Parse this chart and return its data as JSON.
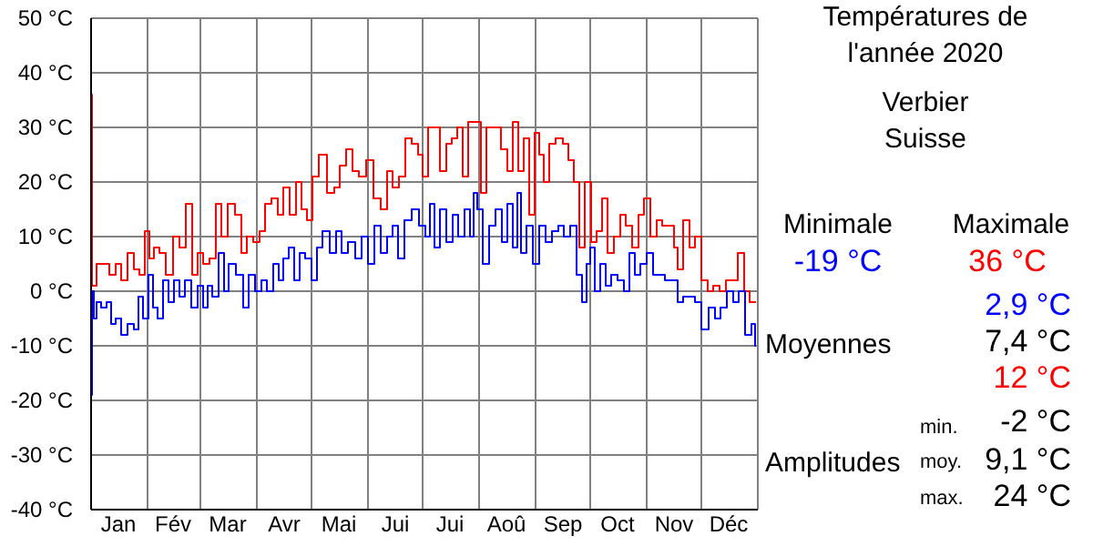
{
  "chart_data": {
    "type": "step",
    "title": "Températures de\nl'année 2020",
    "subtitle": "Verbier\nSuisse",
    "xlim": [
      "2020-01-01",
      "2021-01-01"
    ],
    "xticks": [
      {
        "value": "2020-01-01",
        "label": null
      },
      {
        "value": "2020-01-16",
        "label": "Jan"
      },
      {
        "value": "2020-02-01",
        "label": null
      },
      {
        "value": "2020-02-15",
        "label": "Fév"
      },
      {
        "value": "2020-03-01",
        "label": null
      },
      {
        "value": "2020-03-16",
        "label": "Mar"
      },
      {
        "value": "2020-04-01",
        "label": null
      },
      {
        "value": "2020-04-16",
        "label": "Avr"
      },
      {
        "value": "2020-05-01",
        "label": null
      },
      {
        "value": "2020-05-16",
        "label": "Mai"
      },
      {
        "value": "2020-06-01",
        "label": null
      },
      {
        "value": "2020-06-16",
        "label": "Jui"
      },
      {
        "value": "2020-07-01",
        "label": null
      },
      {
        "value": "2020-07-16",
        "label": "Jui"
      },
      {
        "value": "2020-08-01",
        "label": null
      },
      {
        "value": "2020-08-16",
        "label": "Aoû"
      },
      {
        "value": "2020-09-01",
        "label": null
      },
      {
        "value": "2020-09-16",
        "label": "Sep"
      },
      {
        "value": "2020-10-01",
        "label": null
      },
      {
        "value": "2020-10-16",
        "label": "Oct"
      },
      {
        "value": "2020-11-01",
        "label": null
      },
      {
        "value": "2020-11-16",
        "label": "Nov"
      },
      {
        "value": "2020-12-01",
        "label": null
      },
      {
        "value": "2020-12-16",
        "label": "Déc"
      },
      {
        "value": "2021-01-01",
        "label": null
      }
    ],
    "ylim": [
      -40,
      50
    ],
    "yticks": [
      {
        "value": -40,
        "label": "-40 °C"
      },
      {
        "value": -30,
        "label": "-30 °C"
      },
      {
        "value": -20,
        "label": "-20 °C"
      },
      {
        "value": -10,
        "label": "-10 °C"
      },
      {
        "value": 0,
        "label": "0 °C"
      },
      {
        "value": 10,
        "label": "10 °C"
      },
      {
        "value": 20,
        "label": "20 °C"
      },
      {
        "value": 30,
        "label": "30 °C"
      },
      {
        "value": 40,
        "label": "40 °C"
      },
      {
        "value": 50,
        "label": "50 °C"
      }
    ],
    "grid": true,
    "series": [
      {
        "color": "#ff0000",
        "x": [
          "2020-01-01",
          "2020-01-02",
          "2020-01-06",
          "2020-01-09",
          "2020-01-13",
          "2020-01-16",
          "2020-01-19",
          "2020-01-23",
          "2020-01-26",
          "2020-01-29",
          "2020-02-01",
          "2020-02-03",
          "2020-02-06",
          "2020-02-09",
          "2020-02-13",
          "2020-02-17",
          "2020-02-20",
          "2020-02-24",
          "2020-02-27",
          "2020-03-01",
          "2020-03-04",
          "2020-03-08",
          "2020-03-11",
          "2020-03-14",
          "2020-03-18",
          "2020-03-22",
          "2020-03-25",
          "2020-03-28",
          "2020-04-01",
          "2020-04-04",
          "2020-04-07",
          "2020-04-11",
          "2020-04-14",
          "2020-04-17",
          "2020-04-21",
          "2020-04-24",
          "2020-04-27",
          "2020-04-30",
          "2020-05-03",
          "2020-05-07",
          "2020-05-12",
          "2020-05-15",
          "2020-05-18",
          "2020-05-22",
          "2020-05-25",
          "2020-05-29",
          "2020-06-02",
          "2020-06-06",
          "2020-06-10",
          "2020-06-13",
          "2020-06-16",
          "2020-06-20",
          "2020-06-23",
          "2020-06-27",
          "2020-06-30",
          "2020-07-02",
          "2020-07-06",
          "2020-07-09",
          "2020-07-12",
          "2020-07-16",
          "2020-07-18",
          "2020-07-22",
          "2020-07-24",
          "2020-07-28",
          "2020-08-01",
          "2020-08-03",
          "2020-08-07",
          "2020-08-11",
          "2020-08-15",
          "2020-08-18",
          "2020-08-21",
          "2020-08-24",
          "2020-08-27",
          "2020-08-30",
          "2020-09-02",
          "2020-09-04",
          "2020-09-07",
          "2020-09-10",
          "2020-09-14",
          "2020-09-18",
          "2020-09-20",
          "2020-09-24",
          "2020-09-26",
          "2020-09-30",
          "2020-10-03",
          "2020-10-06",
          "2020-10-09",
          "2020-10-12",
          "2020-10-16",
          "2020-10-19",
          "2020-10-22",
          "2020-10-26",
          "2020-10-29",
          "2020-11-01",
          "2020-11-05",
          "2020-11-08",
          "2020-11-11",
          "2020-11-15",
          "2020-11-17",
          "2020-11-19",
          "2020-11-23",
          "2020-11-26",
          "2020-11-29",
          "2020-12-03",
          "2020-12-06",
          "2020-12-09",
          "2020-12-13",
          "2020-12-16",
          "2020-12-19",
          "2020-12-23",
          "2020-12-26",
          "2020-12-29",
          "2020-12-31"
        ],
        "values": [
          36,
          1,
          5,
          5,
          3,
          5,
          2,
          7,
          4,
          3,
          11,
          6,
          8,
          7,
          3,
          10,
          8,
          16,
          3,
          7,
          5,
          6,
          16,
          10,
          16,
          14,
          7,
          10,
          9,
          11,
          16,
          17,
          14,
          19,
          14,
          20,
          15,
          13,
          21,
          25,
          18,
          19,
          23,
          26,
          22,
          21,
          24,
          17,
          15,
          22,
          19,
          21,
          28,
          27,
          25,
          21,
          30,
          30,
          22,
          27,
          28,
          30,
          21,
          31,
          31,
          18,
          30,
          30,
          26,
          22,
          31,
          22,
          28,
          14,
          29,
          25,
          20,
          27,
          28,
          27,
          24,
          20,
          8,
          20,
          9,
          11,
          17,
          7,
          10,
          14,
          12,
          8,
          14,
          17,
          10,
          13,
          12,
          12,
          8,
          4,
          13,
          8,
          10,
          2,
          0,
          1,
          0,
          2,
          2,
          7,
          0,
          -2,
          -2
        ]
      },
      {
        "color": "#0000ff",
        "x": [
          "2020-01-01",
          "2020-01-02",
          "2020-01-03",
          "2020-01-05",
          "2020-01-08",
          "2020-01-11",
          "2020-01-13",
          "2020-01-16",
          "2020-01-19",
          "2020-01-23",
          "2020-01-26",
          "2020-01-28",
          "2020-01-31",
          "2020-02-03",
          "2020-02-05",
          "2020-02-08",
          "2020-02-11",
          "2020-02-14",
          "2020-02-17",
          "2020-02-20",
          "2020-02-23",
          "2020-02-27",
          "2020-03-01",
          "2020-03-04",
          "2020-03-06",
          "2020-03-09",
          "2020-03-13",
          "2020-03-15",
          "2020-03-18",
          "2020-03-23",
          "2020-03-26",
          "2020-03-29",
          "2020-04-02",
          "2020-04-05",
          "2020-04-08",
          "2020-04-12",
          "2020-04-14",
          "2020-04-17",
          "2020-04-20",
          "2020-04-23",
          "2020-04-26",
          "2020-04-29",
          "2020-05-03",
          "2020-05-05",
          "2020-05-09",
          "2020-05-13",
          "2020-05-16",
          "2020-05-19",
          "2020-05-23",
          "2020-05-27",
          "2020-05-30",
          "2020-06-03",
          "2020-06-06",
          "2020-06-10",
          "2020-06-13",
          "2020-06-16",
          "2020-06-19",
          "2020-06-23",
          "2020-06-27",
          "2020-07-01",
          "2020-07-04",
          "2020-07-06",
          "2020-07-09",
          "2020-07-12",
          "2020-07-16",
          "2020-07-19",
          "2020-07-22",
          "2020-07-26",
          "2020-07-28",
          "2020-07-30",
          "2020-08-01",
          "2020-08-05",
          "2020-08-08",
          "2020-08-12",
          "2020-08-15",
          "2020-08-18",
          "2020-08-21",
          "2020-08-23",
          "2020-08-25",
          "2020-08-29",
          "2020-09-01",
          "2020-09-05",
          "2020-09-08",
          "2020-09-12",
          "2020-09-15",
          "2020-09-18",
          "2020-09-22",
          "2020-09-25",
          "2020-09-28",
          "2020-09-30",
          "2020-10-02",
          "2020-10-05",
          "2020-10-08",
          "2020-10-11",
          "2020-10-14",
          "2020-10-18",
          "2020-10-21",
          "2020-10-24",
          "2020-10-27",
          "2020-10-30",
          "2020-11-03",
          "2020-11-06",
          "2020-11-09",
          "2020-11-13",
          "2020-11-17",
          "2020-11-19",
          "2020-11-23",
          "2020-11-26",
          "2020-11-29",
          "2020-12-03",
          "2020-12-07",
          "2020-12-10",
          "2020-12-13",
          "2020-12-17",
          "2020-12-20",
          "2020-12-23",
          "2020-12-27",
          "2020-12-30",
          "2020-12-31"
        ],
        "values": [
          -19,
          0,
          -5,
          -2,
          -3,
          -2,
          -6,
          -5,
          -8,
          -6,
          -7,
          -1,
          -5,
          3,
          -3,
          -5,
          2,
          -2,
          2,
          -1,
          2,
          -3,
          1,
          -3,
          1,
          -1,
          7,
          0,
          5,
          3,
          -3,
          3,
          0,
          2,
          0,
          5,
          2,
          6,
          8,
          2,
          7,
          6,
          2,
          8,
          11,
          7,
          11,
          7,
          9,
          6,
          10,
          5,
          12,
          7,
          10,
          12,
          6,
          13,
          15,
          12,
          10,
          16,
          8,
          15,
          9,
          14,
          10,
          15,
          10,
          18,
          15,
          5,
          12,
          15,
          9,
          16,
          8,
          18,
          7,
          12,
          5,
          12,
          9,
          11,
          12,
          10,
          12,
          3,
          -2,
          5,
          8,
          0,
          5,
          1,
          3,
          2,
          0,
          7,
          3,
          5,
          7,
          3,
          3,
          2,
          2,
          -2,
          -1,
          -1,
          -2,
          -7,
          -3,
          -5,
          -3,
          0,
          -2,
          0,
          -8,
          -6,
          -10
        ]
      }
    ],
    "annotations": [
      "Minimale",
      "-19 °C",
      "Maximale",
      "36 °C",
      "2,9 °C",
      "Moyennes",
      "7,4 °C",
      "12 °C",
      "min.",
      "-2 °C",
      "Amplitudes",
      "moy.",
      "9,1 °C",
      "max.",
      "24 °C"
    ]
  }
}
